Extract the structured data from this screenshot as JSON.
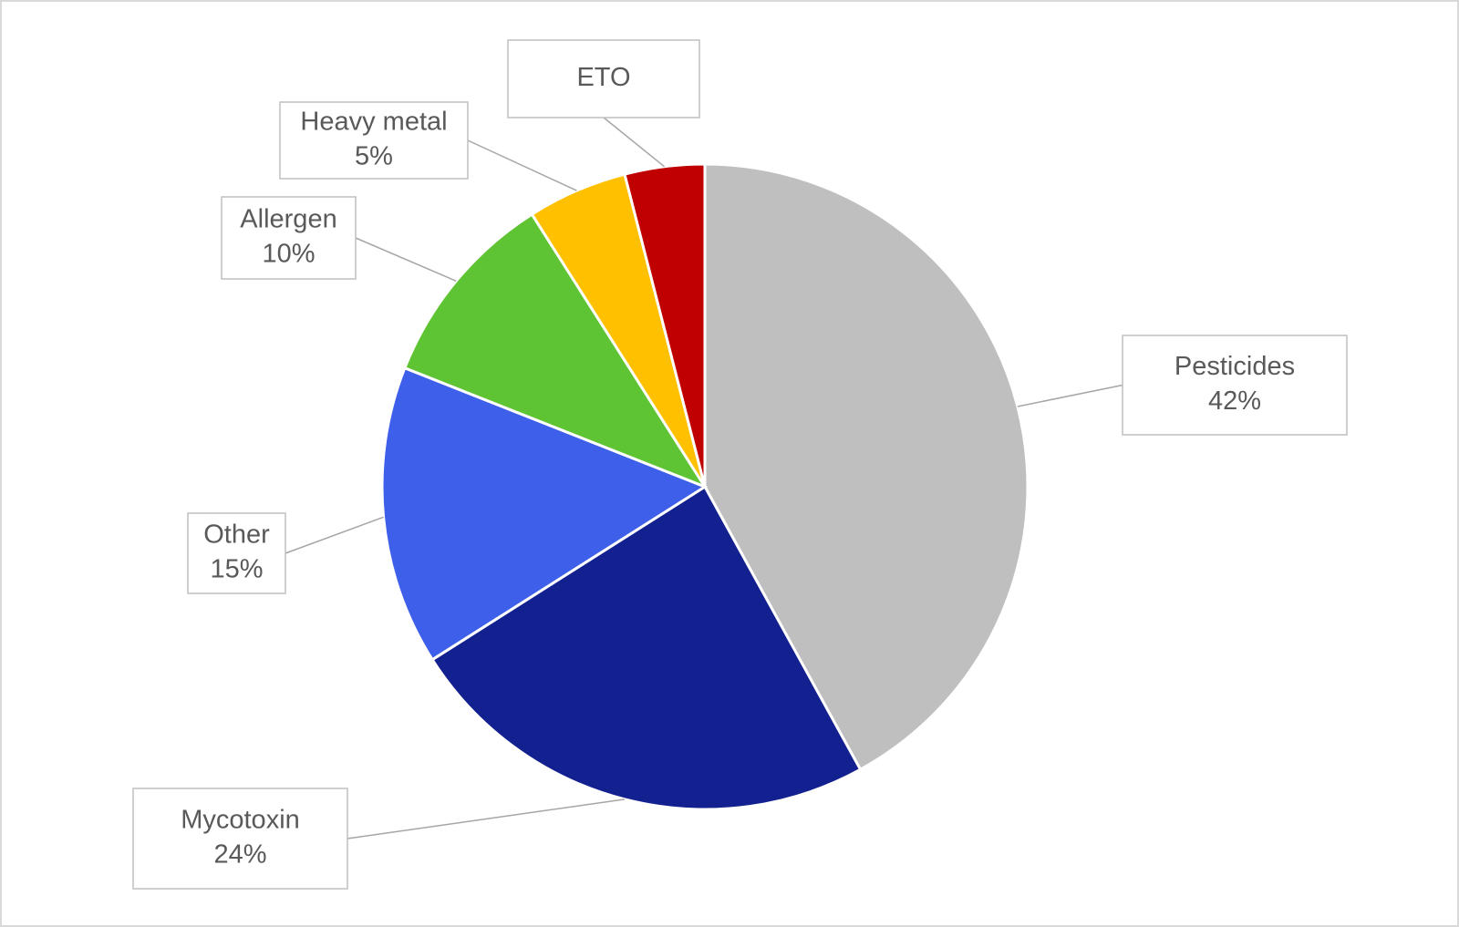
{
  "chart_data": {
    "type": "pie",
    "categories": [
      "Pesticides",
      "Mycotoxin",
      "Other",
      "Allergen",
      "Heavy metal",
      "ETO"
    ],
    "values": [
      42,
      24,
      15,
      10,
      5,
      4
    ],
    "value_labels": [
      "42%",
      "24%",
      "15%",
      "10%",
      "5%",
      null
    ],
    "colors": [
      "#bfbfbf",
      "#13208f",
      "#3d5fea",
      "#5fc433",
      "#ffc000",
      "#c00000"
    ]
  }
}
